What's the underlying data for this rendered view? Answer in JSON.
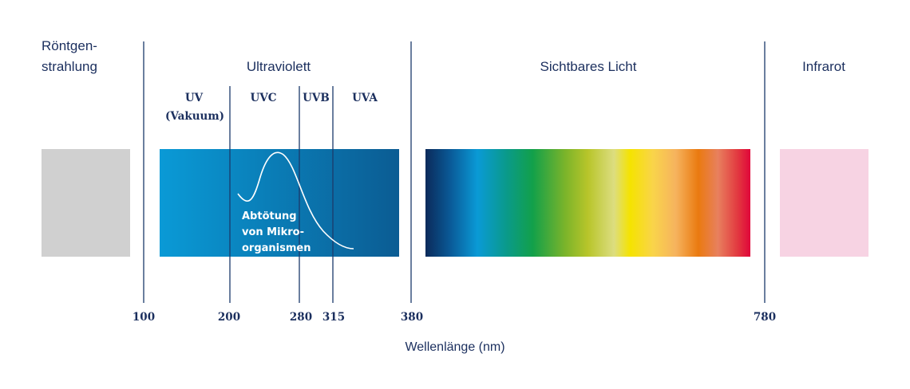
{
  "regions": [
    {
      "lines": [
        "Röntgen-",
        "strahlung"
      ]
    },
    {
      "lines": [
        "Ultraviolett"
      ]
    },
    {
      "lines": [
        "Sichtbares Licht"
      ]
    },
    {
      "lines": [
        "Infrarot"
      ]
    }
  ],
  "uv_bands": [
    {
      "lines": [
        "UV",
        "(Vakuum)"
      ]
    },
    {
      "lines": [
        "UVC"
      ]
    },
    {
      "lines": [
        "UVB"
      ]
    },
    {
      "lines": [
        "UVA"
      ]
    }
  ],
  "annotation": {
    "lines": [
      "Abtötung",
      "von Mikro-",
      "organismen"
    ]
  },
  "wavelengths": [
    "100",
    "200",
    "280",
    "315",
    "380",
    "780"
  ],
  "axis_label": "Wellenlänge (nm)"
}
